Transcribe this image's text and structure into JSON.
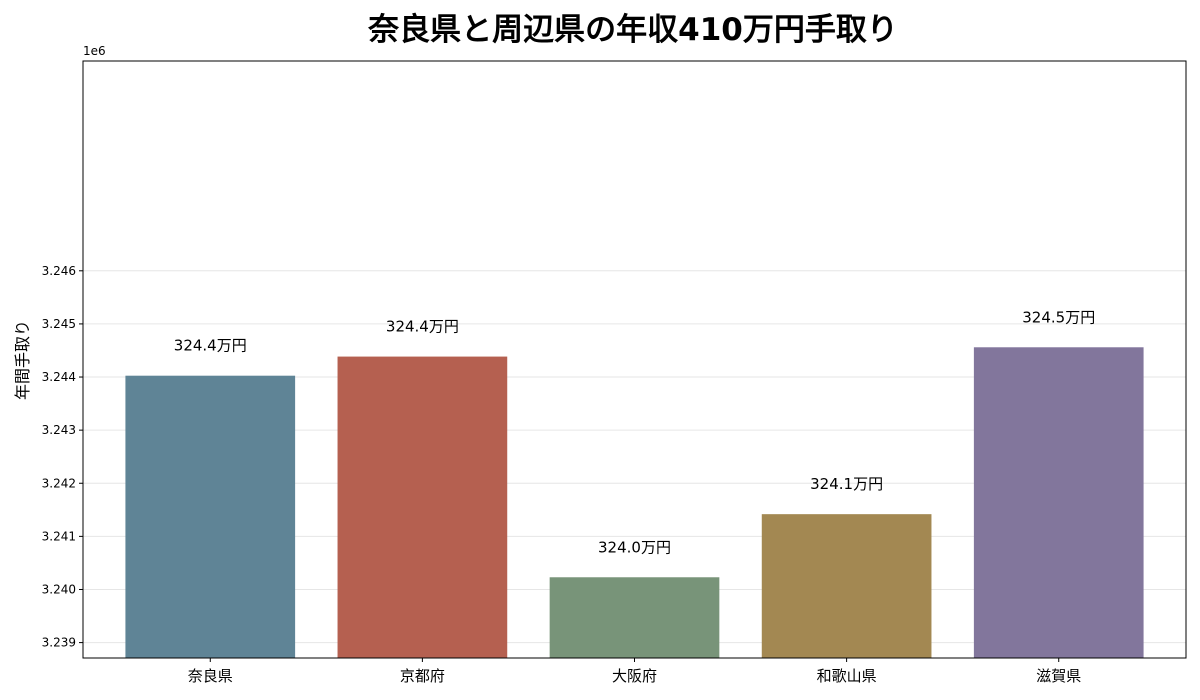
{
  "chart_data": {
    "type": "bar",
    "title": "奈良県と周辺県の年収410万円手取り",
    "xlabel": "",
    "ylabel": "年間手取り",
    "y_offset_label": "1e6",
    "categories": [
      "奈良県",
      "京都府",
      "大阪府",
      "和歌山県",
      "滋賀県"
    ],
    "values": [
      3244025,
      3244385,
      3240230,
      3241418,
      3244560
    ],
    "data_labels": [
      "324.4万円",
      "324.4万円",
      "324.0万円",
      "324.1万円",
      "324.5万円"
    ],
    "colors": [
      "#5f8496",
      "#b56050",
      "#789479",
      "#a38852",
      "#82769c"
    ],
    "ylim": [
      3238710,
      3249950
    ],
    "yticks": [
      3239000,
      3240000,
      3241000,
      3242000,
      3243000,
      3244000,
      3245000,
      3246000
    ],
    "ytick_labels": [
      "3.239",
      "3.240",
      "3.241",
      "3.242",
      "3.243",
      "3.244",
      "3.245",
      "3.246"
    ],
    "grid": true,
    "legend": "none"
  }
}
